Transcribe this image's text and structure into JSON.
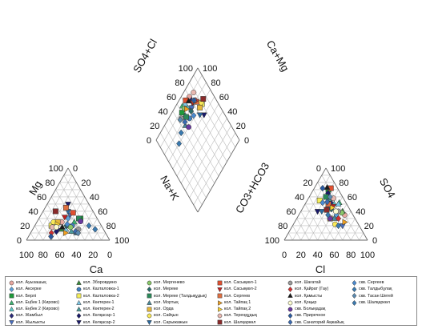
{
  "chart_data": {
    "type": "scatter",
    "subtype": "piper",
    "axes": {
      "cation_left": "Mg",
      "cation_bottom": "Ca",
      "cation_right": "Na+K",
      "anion_left": "CO3+HCO3",
      "anion_bottom": "Cl",
      "anion_right": "SO4",
      "diamond_left": "SO4+Cl",
      "diamond_right": "Ca+Mg"
    },
    "ticks": [
      "0",
      "20",
      "40",
      "60",
      "80",
      "100"
    ],
    "points": [
      {
        "name": "кол. Ауызашық",
        "color": "#e9a8a0",
        "shape": "circle",
        "cation": [
          45,
          25,
          30
        ],
        "anion": [
          10,
          55,
          35
        ]
      },
      {
        "name": "кол. Аксерке",
        "color": "#5aa0d8",
        "shape": "diamond",
        "cation": [
          35,
          30,
          35
        ],
        "anion": [
          20,
          45,
          35
        ]
      },
      {
        "name": "кол. Берлі",
        "color": "#1e9a3a",
        "shape": "square",
        "cation": [
          20,
          30,
          50
        ],
        "anion": [
          12,
          18,
          70
        ]
      },
      {
        "name": "кол. Еңбек 1 (Кирово)",
        "color": "#3cb371",
        "shape": "triangle",
        "cation": [
          30,
          25,
          45
        ],
        "anion": [
          8,
          40,
          52
        ]
      },
      {
        "name": "кол. Еңбек 2 (Кирово)",
        "color": "#5bc8c8",
        "shape": "triangle",
        "cation": [
          40,
          20,
          40
        ],
        "anion": [
          15,
          35,
          50
        ]
      },
      {
        "name": "кол. Жамбыл",
        "color": "#2a2a7a",
        "shape": "diamond",
        "cation": [
          55,
          15,
          30
        ],
        "anion": [
          18,
          30,
          52
        ]
      },
      {
        "name": "кол. Жылыкты",
        "color": "#4a6fc0",
        "shape": "triangle-down",
        "cation": [
          30,
          35,
          35
        ],
        "anion": [
          20,
          60,
          20
        ]
      },
      {
        "name": "кол. Зборовдино",
        "color": "#3a8a3a",
        "shape": "triangle",
        "cation": [
          50,
          15,
          35
        ],
        "anion": [
          10,
          50,
          40
        ]
      },
      {
        "name": "кол. Казталовка-1",
        "color": "#4080c0",
        "shape": "circle",
        "cation": [
          35,
          20,
          45
        ],
        "anion": [
          25,
          30,
          45
        ]
      },
      {
        "name": "кол. Казталовка-2",
        "color": "#f4ee5a",
        "shape": "square",
        "cation": [
          60,
          20,
          20
        ],
        "anion": [
          30,
          15,
          55
        ]
      },
      {
        "name": "кол. Көктерек-1",
        "color": "#7ec8e8",
        "shape": "triangle",
        "cation": [
          45,
          15,
          40
        ],
        "anion": [
          10,
          40,
          50
        ]
      },
      {
        "name": "кол. Көктерек-2",
        "color": "#4a9a9a",
        "shape": "triangle",
        "cation": [
          40,
          12,
          48
        ],
        "anion": [
          18,
          25,
          57
        ]
      },
      {
        "name": "кол. Көлқасар-1",
        "color": "#1a1a6a",
        "shape": "diamond",
        "cation": [
          58,
          12,
          30
        ],
        "anion": [
          15,
          20,
          65
        ]
      },
      {
        "name": "кол. Көлқасар-2",
        "color": "#1a1a6a",
        "shape": "triangle-down",
        "cation": [
          25,
          50,
          25
        ],
        "anion": [
          40,
          20,
          40
        ]
      },
      {
        "name": "кол. Мергенево",
        "color": "#8ac86a",
        "shape": "circle",
        "cation": [
          38,
          18,
          44
        ],
        "anion": [
          12,
          50,
          38
        ]
      },
      {
        "name": "кол. Мереке",
        "color": "#2a6a6a",
        "shape": "diamond",
        "cation": [
          42,
          20,
          38
        ],
        "anion": [
          22,
          35,
          43
        ]
      },
      {
        "name": "кол. Мереке (Талдықұдық)",
        "color": "#2a8a5a",
        "shape": "square",
        "cation": [
          22,
          30,
          48
        ],
        "anion": [
          20,
          20,
          60
        ]
      },
      {
        "name": "кол. Мортық",
        "color": "#4a8a9a",
        "shape": "triangle",
        "cation": [
          35,
          10,
          55
        ],
        "anion": [
          25,
          45,
          30
        ]
      },
      {
        "name": "кол. Орда",
        "color": "#e8b83a",
        "shape": "square",
        "cation": [
          50,
          25,
          25
        ],
        "anion": [
          30,
          40,
          30
        ]
      },
      {
        "name": "кол. Сайқын",
        "color": "#f8e858",
        "shape": "circle",
        "cation": [
          55,
          25,
          20
        ],
        "anion": [
          28,
          50,
          22
        ]
      },
      {
        "name": "кол. Сарыжажын",
        "color": "#2a6aa0",
        "shape": "triangle-down",
        "cation": [
          30,
          40,
          30
        ],
        "anion": [
          35,
          25,
          40
        ]
      },
      {
        "name": "кол. Сасықкөл-1",
        "color": "#e05030",
        "shape": "square",
        "cation": [
          25,
          38,
          37
        ],
        "anion": [
          8,
          20,
          72
        ]
      },
      {
        "name": "кол. Сасықкөл-2",
        "color": "#c02020",
        "shape": "triangle-down",
        "cation": [
          38,
          32,
          30
        ],
        "anion": [
          18,
          35,
          47
        ]
      },
      {
        "name": "кол. Сергеев",
        "color": "#e07040",
        "shape": "square",
        "cation": [
          30,
          45,
          25
        ],
        "anion": [
          22,
          28,
          50
        ]
      },
      {
        "name": "кол. Тайпақ 1",
        "color": "#f0a020",
        "shape": "triangle-right",
        "cation": [
          48,
          10,
          42
        ],
        "anion": [
          15,
          60,
          25
        ]
      },
      {
        "name": "кол. Тайпақ 2",
        "color": "#f8d030",
        "shape": "triangle-right",
        "cation": [
          52,
          22,
          26
        ],
        "anion": [
          20,
          35,
          45
        ]
      },
      {
        "name": "кол. Тереңқұдық",
        "color": "#e8b8b0",
        "shape": "circle",
        "cation": [
          60,
          18,
          22
        ],
        "anion": [
          12,
          30,
          58
        ]
      },
      {
        "name": "кол. Шалқаркөл",
        "color": "#8a2a2a",
        "shape": "square",
        "cation": [
          45,
          40,
          15
        ],
        "anion": [
          28,
          30,
          42
        ]
      },
      {
        "name": "кол. Шағатай",
        "color": "#9a9a9a",
        "shape": "circle",
        "cation": [
          30,
          15,
          55
        ],
        "anion": [
          15,
          45,
          40
        ]
      },
      {
        "name": "кол. Қайрат (Гау)",
        "color": "#d03030",
        "shape": "diamond",
        "cation": [
          65,
          10,
          25
        ],
        "anion": [
          20,
          50,
          30
        ]
      },
      {
        "name": "кол. Қамысты",
        "color": "#1a1a1a",
        "shape": "triangle",
        "cation": [
          48,
          18,
          34
        ],
        "anion": [
          12,
          15,
          73
        ]
      },
      {
        "name": "кол. Қоңыр",
        "color": "#fbfbd0",
        "shape": "circle",
        "cation": [
          55,
          18,
          27
        ],
        "anion": [
          18,
          42,
          40
        ]
      },
      {
        "name": "скв. Болықадақ",
        "color": "#6a3aa0",
        "shape": "circle",
        "cation": [
          22,
          26,
          52
        ],
        "anion": [
          30,
          40,
          30
        ]
      },
      {
        "name": "скв. Приречное",
        "color": "#2a5aa0",
        "shape": "diamond",
        "cation": [
          68,
          5,
          27
        ],
        "anion": [
          18,
          10,
          72
        ]
      },
      {
        "name": "скв. Санаторий Ақжайық",
        "color": "#3a6ab0",
        "shape": "diamond",
        "cation": [
          35,
          12,
          53
        ],
        "anion": [
          22,
          25,
          53
        ]
      },
      {
        "name": "скв. Сергеев",
        "color": "#4a8ad0",
        "shape": "diamond",
        "cation": [
          40,
          22,
          38
        ],
        "anion": [
          28,
          20,
          52
        ]
      },
      {
        "name": "скв. Талдыбұлақ",
        "color": "#3a7ab0",
        "shape": "diamond",
        "cation": [
          15,
          20,
          65
        ],
        "anion": [
          25,
          55,
          20
        ]
      },
      {
        "name": "скв. Тасан Шегей",
        "color": "#5a8ab0",
        "shape": "diamond",
        "cation": [
          33,
          10,
          57
        ],
        "anion": [
          15,
          25,
          60
        ]
      },
      {
        "name": "скв. Шалқаркөл",
        "color": "#3a7ab0",
        "shape": "diamond",
        "cation": [
          10,
          15,
          75
        ],
        "anion": [
          30,
          35,
          35
        ]
      }
    ]
  }
}
